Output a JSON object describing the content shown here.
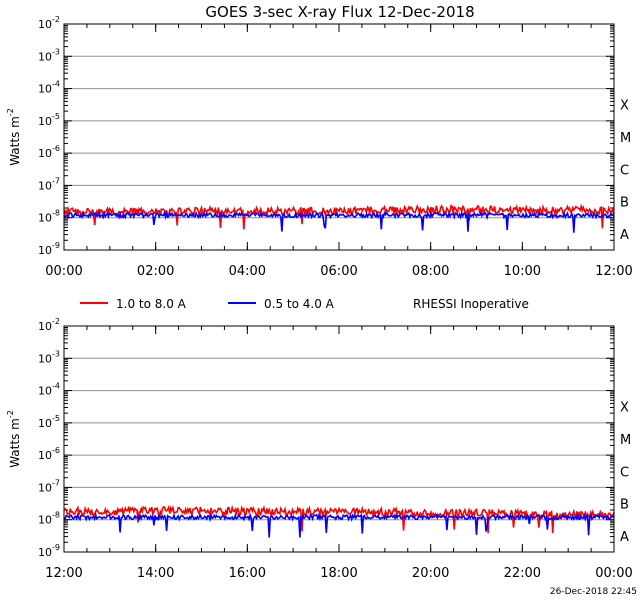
{
  "title": "GOES 3-sec X-ray Flux   12-Dec-2018",
  "footer_timestamp": "26-Dec-2018 22:45",
  "legend": {
    "items": [
      {
        "label": "1.0 to 8.0 A",
        "color": "#ff0000"
      },
      {
        "label": "0.5 to 4.0 A",
        "color": "#0000ff"
      }
    ],
    "note": "RHESSI Inoperative"
  },
  "colors": {
    "long_channel": "#ff0000",
    "short_channel": "#0000ff",
    "grid": "#909090"
  },
  "chart_data": [
    {
      "type": "line",
      "ylabel": "Watts m-2",
      "y_scale": "log",
      "ylim": [
        1e-09,
        0.01
      ],
      "y_ticks": [
        "10^-9",
        "10^-8",
        "10^-7",
        "10^-6",
        "10^-5",
        "10^-4",
        "10^-3",
        "10^-2"
      ],
      "x_ticks": [
        "00:00",
        "02:00",
        "04:00",
        "06:00",
        "08:00",
        "10:00",
        "12:00"
      ],
      "flare_classes": [
        "A",
        "B",
        "C",
        "M",
        "X"
      ],
      "grid": "horizontal",
      "series": [
        {
          "name": "1.0 to 8.0 A",
          "color": "#ff0000",
          "x": [
            "00:00",
            "01:00",
            "02:00",
            "03:00",
            "04:00",
            "05:00",
            "06:00",
            "07:00",
            "08:00",
            "09:00",
            "10:00",
            "11:00",
            "12:00"
          ],
          "y": [
            1.5e-08,
            1.5e-08,
            1.5e-08,
            1.6e-08,
            1.6e-08,
            1.6e-08,
            1.6e-08,
            1.7e-08,
            1.8e-08,
            1.8e-08,
            1.7e-08,
            1.7e-08,
            1.7e-08
          ]
        },
        {
          "name": "0.5 to 4.0 A",
          "color": "#0000ff",
          "x": [
            "00:00",
            "01:00",
            "02:00",
            "03:00",
            "04:00",
            "05:00",
            "06:00",
            "07:00",
            "08:00",
            "09:00",
            "10:00",
            "11:00",
            "12:00"
          ],
          "y": [
            1.2e-08,
            1.2e-08,
            1.2e-08,
            1.2e-08,
            1.2e-08,
            1.2e-08,
            1.2e-08,
            1.2e-08,
            1.2e-08,
            1.2e-08,
            1.2e-08,
            1.2e-08,
            1.2e-08
          ]
        }
      ]
    },
    {
      "type": "line",
      "ylabel": "Watts m-2",
      "y_scale": "log",
      "ylim": [
        1e-09,
        0.01
      ],
      "y_ticks": [
        "10^-9",
        "10^-8",
        "10^-7",
        "10^-6",
        "10^-5",
        "10^-4",
        "10^-3",
        "10^-2"
      ],
      "x_ticks": [
        "12:00",
        "14:00",
        "16:00",
        "18:00",
        "20:00",
        "22:00",
        "00:00"
      ],
      "flare_classes": [
        "A",
        "B",
        "C",
        "M",
        "X"
      ],
      "grid": "horizontal",
      "series": [
        {
          "name": "1.0 to 8.0 A",
          "color": "#ff0000",
          "x": [
            "12:00",
            "13:00",
            "14:00",
            "15:00",
            "16:00",
            "17:00",
            "18:00",
            "19:00",
            "20:00",
            "21:00",
            "22:00",
            "23:00",
            "00:00"
          ],
          "y": [
            1.8e-08,
            1.8e-08,
            1.9e-08,
            1.9e-08,
            1.8e-08,
            1.8e-08,
            1.7e-08,
            1.7e-08,
            1.6e-08,
            1.7e-08,
            1.5e-08,
            1.4e-08,
            1.4e-08
          ]
        },
        {
          "name": "0.5 to 4.0 A",
          "color": "#0000ff",
          "x": [
            "12:00",
            "13:00",
            "14:00",
            "15:00",
            "16:00",
            "17:00",
            "18:00",
            "19:00",
            "20:00",
            "21:00",
            "22:00",
            "23:00",
            "00:00"
          ],
          "y": [
            1.2e-08,
            1.2e-08,
            1.2e-08,
            1.2e-08,
            1.2e-08,
            1.2e-08,
            1.2e-08,
            1.2e-08,
            1.2e-08,
            1.2e-08,
            1.2e-08,
            1.2e-08,
            1.2e-08
          ]
        }
      ]
    }
  ]
}
